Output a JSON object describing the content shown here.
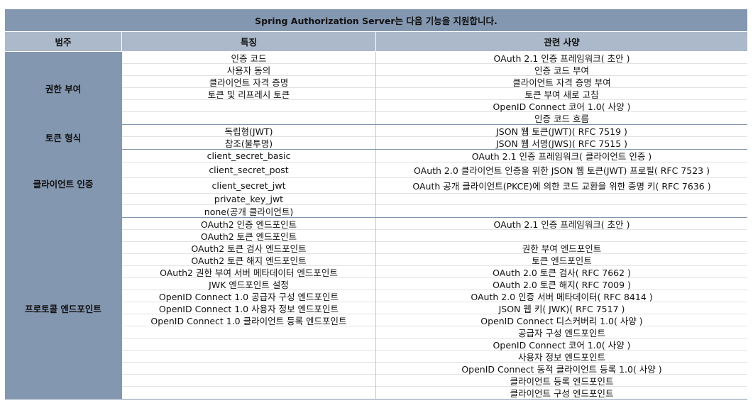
{
  "title": "Spring Authorization Server는 다음 기능을 지원합니다.",
  "headers": {
    "category": "범주",
    "feature": "특징",
    "spec": "관련 사양"
  },
  "groups": [
    {
      "category": "권한 부여",
      "features": [
        "인증 코드",
        "사용자 동의",
        "클라이언트 자격 증명",
        "토큰 및 리프레시 토큰",
        "",
        ""
      ],
      "specs": [
        "OAuth 2.1 인증 프레임워크( 초안 )",
        "인증 코드 부여",
        "클라이언트 자격 증명 부여",
        "토큰 부여 새로 고침",
        "OpenID Connect 코어 1.0( 사양 )",
        "인증 코드 흐름"
      ]
    },
    {
      "category": "토큰 형식",
      "features": [
        "독립형(JWT)",
        "참조(불투명)"
      ],
      "specs": [
        "JSON 웹 토큰(JWT)( RFC 7519 )",
        "JSON 웹 서명(JWS)( RFC 7515 )"
      ]
    },
    {
      "category": "클라이언트 인증",
      "features": [
        "client_secret_basic",
        "client_secret_post",
        "client_secret_jwt",
        "private_key_jwt",
        "none(공개 클라이언트)"
      ],
      "specs": [
        "OAuth 2.1 인증 프레임워크( 클라이언트 인증 )",
        "OAuth 2.0 클라이언트 인증을 위한 JSON 웹 토큰(JWT) 프로필( RFC 7523 )",
        "OAuth 공개 클라이언트(PKCE)에 의한 코드 교환을 위한 증명 키( RFC 7636 )",
        "",
        ""
      ]
    },
    {
      "category": "프로토콜 엔드포인트",
      "features": [
        "OAuth2 인증 엔드포인트",
        "OAuth2 토큰 엔드포인트",
        "OAuth2 토큰 검사 엔드포인트",
        "OAuth2 토큰 해지 엔드포인트",
        "OAuth2 권한 부여 서버 메타데이터 엔드포인트",
        "JWK 엔드포인트 설정",
        "OpenID Connect 1.0 공급자 구성 엔드포인트",
        "OpenID Connect 1.0 사용자 정보 엔드포인트",
        "OpenID Connect 1.0 클라이언트 등록 엔드포인트",
        "",
        "",
        "",
        "",
        "",
        ""
      ],
      "specs": [
        "OAuth 2.1 인증 프레임워크( 초안 )",
        "",
        "권한 부여 엔드포인트",
        "토큰 엔드포인트",
        "OAuth 2.0 토큰 검사( RFC 7662 )",
        "OAuth 2.0 토큰 해지( RFC 7009 )",
        "OAuth 2.0 인증 서버 메타데이터( RFC 8414 )",
        "JSON 웹 키( JWK)( RFC 7517 )",
        "OpenID Connect 디스커버리 1.0( 사양 )",
        "공급자 구성 엔드포인트",
        "OpenID Connect 코어 1.0( 사양 )",
        "사용자 정보 엔드포인트",
        "OpenID Connect 동적 클라이언트 등록 1.0( 사양 )",
        "클라이언트 등록 엔드포인트",
        "클라이언트 구성 엔드포인트"
      ]
    }
  ]
}
